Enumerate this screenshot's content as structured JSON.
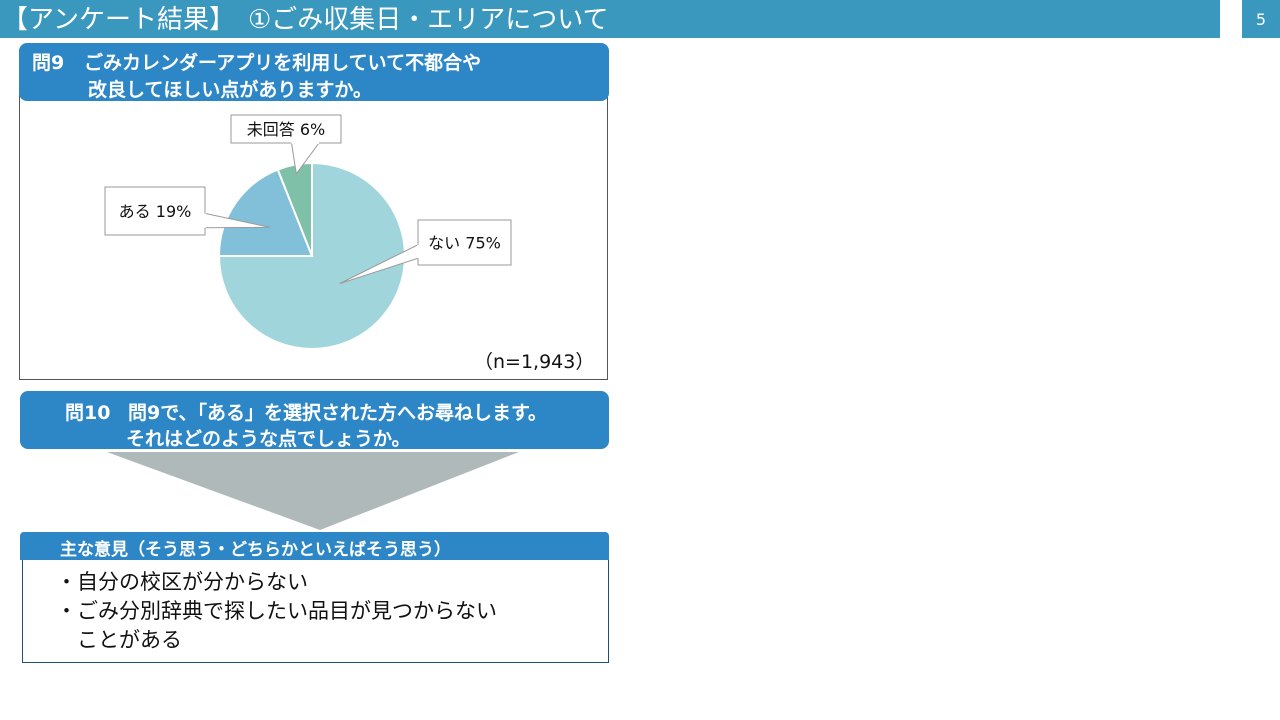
{
  "header": {
    "title": "【アンケート結果】　①ごみ収集日・エリアについて",
    "page_number": "5"
  },
  "question9": {
    "number": "問9",
    "line1": "ごみカレンダーアプリを利用していて不都合や",
    "line2": "改良してほしい点がありますか。"
  },
  "chart_data": {
    "type": "pie",
    "categories": [
      "ない",
      "ある",
      "未回答"
    ],
    "values": [
      75,
      19,
      6
    ],
    "unit": "%",
    "labels": [
      "ない  75%",
      "ある  19%",
      "未回答  6%"
    ],
    "colors": [
      "#a1d5dc",
      "#82c0da",
      "#7fc0a8"
    ],
    "start_angle_deg": 0,
    "direction": "clockwise",
    "note": "（n=1,943）"
  },
  "question10": {
    "number": "問10",
    "line1": "問9で、「ある」を選択された方へお尋ねします。",
    "line2": "それはどのような点でしょうか。"
  },
  "opinions": {
    "header": "主な意見（そう思う・どちらかといえばそう思う）",
    "items": [
      "・自分の校区が分からない",
      "・ごみ分別辞典で探したい品目が見つからない",
      "　ことがある"
    ]
  },
  "colors": {
    "title_bar": "#3a97bd",
    "question_header": "#2d86c6",
    "arrow": "#b0b9b9"
  }
}
